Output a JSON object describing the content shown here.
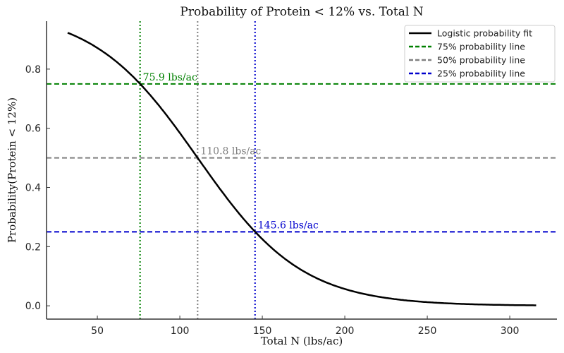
{
  "chart_data": {
    "type": "line",
    "title": "Probability of Protein < 12% vs. Total N",
    "xlabel": "Total N (lbs/ac)",
    "ylabel": "Probability(Protein < 12%)",
    "xlim": [
      19.2,
      328.6
    ],
    "ylim": [
      -0.045,
      0.962
    ],
    "xticks": [
      50,
      100,
      150,
      200,
      250,
      300
    ],
    "xtick_labels": [
      "50",
      "100",
      "150",
      "200",
      "250",
      "300"
    ],
    "yticks": [
      0.0,
      0.2,
      0.4,
      0.6,
      0.8
    ],
    "ytick_labels": [
      "0.0",
      "0.2",
      "0.4",
      "0.6",
      "0.8"
    ],
    "grid": false,
    "legend_position": "top-right",
    "curve": {
      "name": "Logistic probability fit",
      "color": "#000000",
      "x_range": [
        32,
        316
      ],
      "midpoint": 110.8,
      "slope": 0.0315
    },
    "hlines": [
      {
        "name": "75% probability line",
        "y": 0.75,
        "color": "#008000"
      },
      {
        "name": "50% probability line",
        "y": 0.5,
        "color": "#808080"
      },
      {
        "name": "25% probability line",
        "y": 0.25,
        "color": "#0000cd"
      }
    ],
    "vlines": [
      {
        "x": 75.9,
        "color": "#008000",
        "label": "75.9 lbs/ac",
        "label_y": 0.75
      },
      {
        "x": 110.8,
        "color": "#808080",
        "label": "110.8 lbs/ac",
        "label_y": 0.5
      },
      {
        "x": 145.6,
        "color": "#0000cd",
        "label": "145.6 lbs/ac",
        "label_y": 0.25
      }
    ]
  }
}
